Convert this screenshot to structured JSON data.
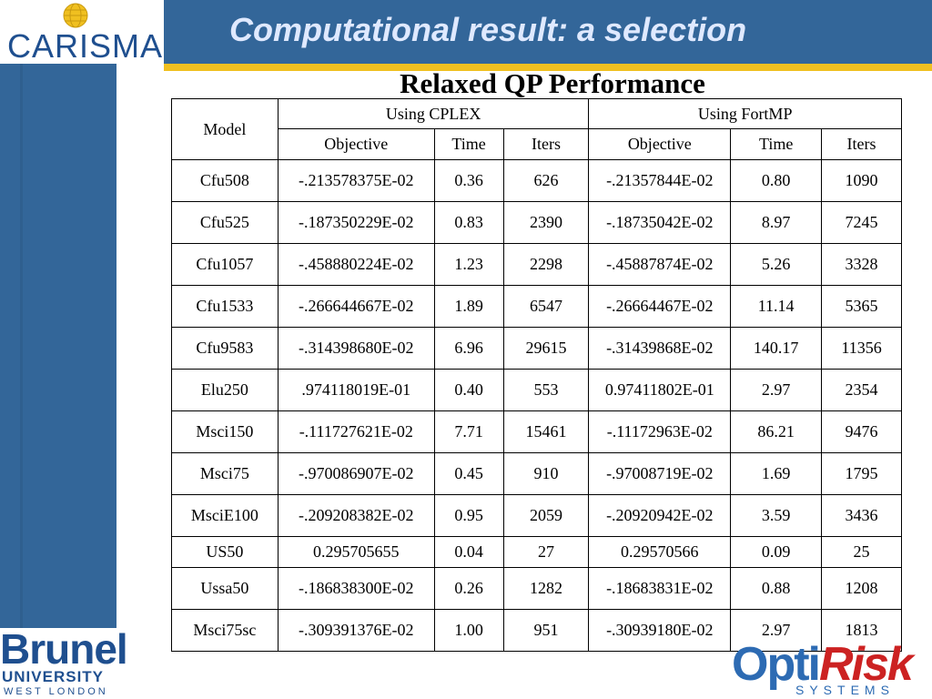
{
  "header": {
    "logo_text": "CARISMA",
    "title": "Computational result: a selection"
  },
  "table_title": "Relaxed QP Performance",
  "table": {
    "model_header": "Model",
    "group_cplex": "Using CPLEX",
    "group_fortmp": "Using FortMP",
    "subheaders": [
      "Objective",
      "Time",
      "Iters",
      "Objective",
      "Time",
      "Iters"
    ],
    "rows": [
      [
        "Cfu508",
        "-.213578375E-02",
        "0.36",
        "626",
        "-.21357844E-02",
        "0.80",
        "1090"
      ],
      [
        "Cfu525",
        "-.187350229E-02",
        "0.83",
        "2390",
        "-.18735042E-02",
        "8.97",
        "7245"
      ],
      [
        "Cfu1057",
        "-.458880224E-02",
        "1.23",
        "2298",
        "-.45887874E-02",
        "5.26",
        "3328"
      ],
      [
        "Cfu1533",
        "-.266644667E-02",
        "1.89",
        "6547",
        "-.26664467E-02",
        "11.14",
        "5365"
      ],
      [
        "Cfu9583",
        "-.314398680E-02",
        "6.96",
        "29615",
        "-.31439868E-02",
        "140.17",
        "11356"
      ],
      [
        "Elu250",
        ".974118019E-01",
        "0.40",
        "553",
        "0.97411802E-01",
        "2.97",
        "2354"
      ],
      [
        "Msci150",
        "-.111727621E-02",
        "7.71",
        "15461",
        "-.11172963E-02",
        "86.21",
        "9476"
      ],
      [
        "Msci75",
        "-.970086907E-02",
        "0.45",
        "910",
        "-.97008719E-02",
        "1.69",
        "1795"
      ],
      [
        "MsciE100",
        "-.209208382E-02",
        "0.95",
        "2059",
        "-.20920942E-02",
        "3.59",
        "3436"
      ],
      [
        "US50",
        "0.295705655",
        "0.04",
        "27",
        "0.29570566",
        "0.09",
        "25"
      ],
      [
        "Ussa50",
        "-.186838300E-02",
        "0.26",
        "1282",
        "-.18683831E-02",
        "0.88",
        "1208"
      ],
      [
        "Msci75sc",
        "-.309391376E-02",
        "1.00",
        "951",
        "-.30939180E-02",
        "2.97",
        "1813"
      ]
    ]
  },
  "footer": {
    "brunel_name": "Brunel",
    "brunel_university": "UNIVERSITY",
    "brunel_location": "WEST LONDON",
    "optirisk_opti": "Opti",
    "optirisk_risk": "Risk",
    "optirisk_systems": "SYSTEMS"
  }
}
